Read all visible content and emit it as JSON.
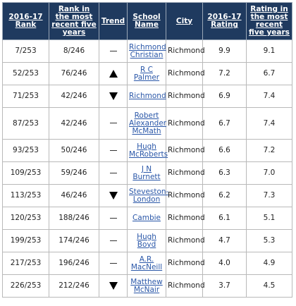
{
  "table": {
    "headers": [
      "2016-17 Rank",
      "Rank in the most recent five years",
      "Trend",
      "School Name",
      "City",
      "2016-17 Rating",
      "Rating in the most recent five years"
    ],
    "rows": [
      {
        "rank": "7/253",
        "rank5": "8/246",
        "trend": "dash",
        "school": "Richmond Christian",
        "city": "Richmond",
        "rating": "9.9",
        "rating5": "9.1"
      },
      {
        "rank": "52/253",
        "rank5": "76/246",
        "trend": "up",
        "school": "R C Palmer",
        "city": "Richmond",
        "rating": "7.2",
        "rating5": "6.7"
      },
      {
        "rank": "71/253",
        "rank5": "42/246",
        "trend": "down",
        "school": "Richmond",
        "city": "Richmond",
        "rating": "6.9",
        "rating5": "7.4"
      },
      {
        "rank": "87/253",
        "rank5": "42/246",
        "trend": "dash",
        "school": "Robert Alexander McMath",
        "city": "Richmond",
        "rating": "6.7",
        "rating5": "7.4"
      },
      {
        "rank": "93/253",
        "rank5": "50/246",
        "trend": "dash",
        "school": "Hugh McRoberts",
        "city": "Richmond",
        "rating": "6.6",
        "rating5": "7.2"
      },
      {
        "rank": "109/253",
        "rank5": "59/246",
        "trend": "dash",
        "school": "J N Burnett",
        "city": "Richmond",
        "rating": "6.3",
        "rating5": "7.0"
      },
      {
        "rank": "113/253",
        "rank5": "46/246",
        "trend": "down",
        "school": "Steveston-London",
        "city": "Richmond",
        "rating": "6.2",
        "rating5": "7.3"
      },
      {
        "rank": "120/253",
        "rank5": "188/246",
        "trend": "dash",
        "school": "Cambie",
        "city": "Richmond",
        "rating": "6.1",
        "rating5": "5.1"
      },
      {
        "rank": "199/253",
        "rank5": "174/246",
        "trend": "dash",
        "school": "Hugh Boyd",
        "city": "Richmond",
        "rating": "4.7",
        "rating5": "5.3"
      },
      {
        "rank": "217/253",
        "rank5": "196/246",
        "trend": "dash",
        "school": "A.R. MacNeill",
        "city": "Richmond",
        "rating": "4.0",
        "rating5": "4.9"
      },
      {
        "rank": "226/253",
        "rank5": "212/246",
        "trend": "down",
        "school": "Matthew McNair",
        "city": "Richmond",
        "rating": "3.7",
        "rating5": "4.5"
      }
    ]
  }
}
